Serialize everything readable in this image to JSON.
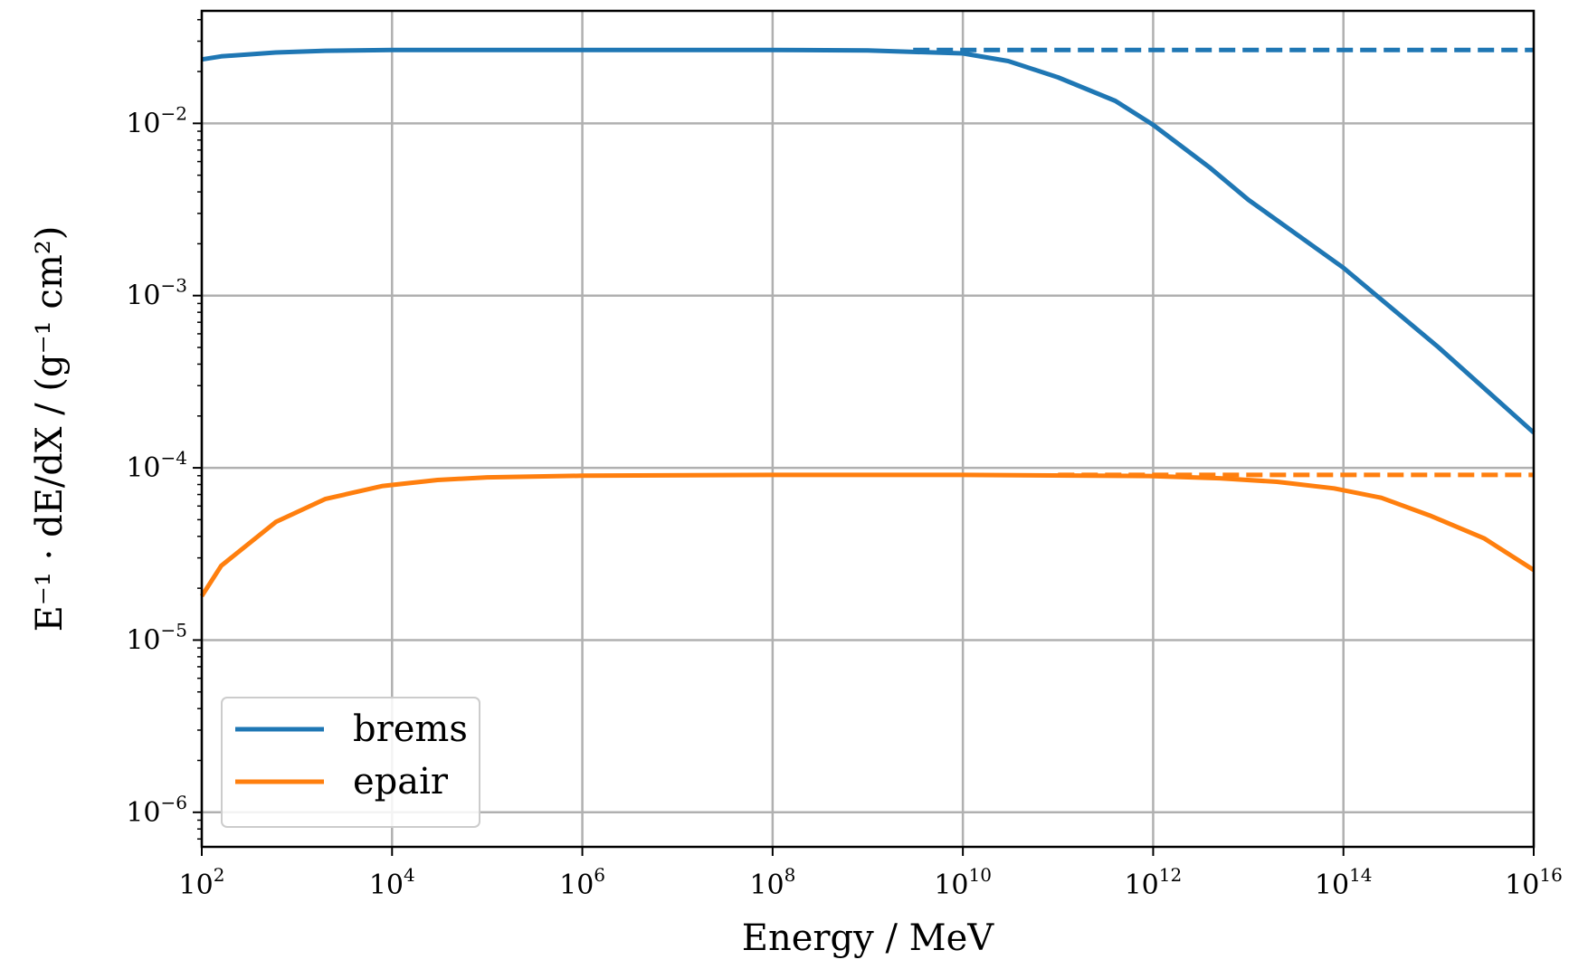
{
  "chart_data": {
    "type": "line",
    "xlabel": "Energy / MeV",
    "ylabel": "E⁻¹ · dE/dX / (g⁻¹ cm²)",
    "x_scale": "log",
    "y_scale": "log",
    "xlim": [
      100,
      1e+16
    ],
    "ylim": [
      6.3e-07,
      0.045
    ],
    "grid": true,
    "legend_position": "lower-left",
    "x_ticks": [
      {
        "value": 100.0,
        "base": "10",
        "exp": "2"
      },
      {
        "value": 10000.0,
        "base": "10",
        "exp": "4"
      },
      {
        "value": 1000000.0,
        "base": "10",
        "exp": "6"
      },
      {
        "value": 100000000.0,
        "base": "10",
        "exp": "8"
      },
      {
        "value": 10000000000.0,
        "base": "10",
        "exp": "10"
      },
      {
        "value": 1000000000000.0,
        "base": "10",
        "exp": "12"
      },
      {
        "value": 100000000000000.0,
        "base": "10",
        "exp": "14"
      },
      {
        "value": 1e+16,
        "base": "10",
        "exp": "16"
      }
    ],
    "y_ticks": [
      {
        "value": 1e-06,
        "base": "10",
        "exp": "−6"
      },
      {
        "value": 1e-05,
        "base": "10",
        "exp": "−5"
      },
      {
        "value": 0.0001,
        "base": "10",
        "exp": "−4"
      },
      {
        "value": 0.001,
        "base": "10",
        "exp": "−3"
      },
      {
        "value": 0.01,
        "base": "10",
        "exp": "−2"
      }
    ],
    "series": [
      {
        "name": "brems",
        "color": "#1f77b4",
        "style": "solid",
        "x": [
          100.0,
          160.0,
          600.0,
          2000.0,
          10000.0,
          1000000.0,
          100000000.0,
          1000000000.0,
          10000000000.0,
          30000000000.0,
          100000000000.0,
          400000000000.0,
          1000000000000.0,
          4000000000000.0,
          10000000000000.0,
          100000000000000.0,
          1000000000000000.0,
          1e+16
        ],
        "y": [
          0.0235,
          0.0245,
          0.0258,
          0.0264,
          0.0267,
          0.0267,
          0.0267,
          0.0265,
          0.0255,
          0.023,
          0.0185,
          0.0135,
          0.0098,
          0.0055,
          0.0036,
          0.00145,
          0.0005,
          0.00016
        ]
      },
      {
        "name": "",
        "color": "#1f77b4",
        "style": "dashed",
        "x": [
          3000000000.0,
          1e+16
        ],
        "y": [
          0.0267,
          0.0267
        ]
      },
      {
        "name": "epair",
        "color": "#ff7f0e",
        "style": "solid",
        "x": [
          100.0,
          160.0,
          600.0,
          2000.0,
          8000.0,
          30000.0,
          100000.0,
          1000000.0,
          100000000.0,
          10000000000.0,
          1000000000000.0,
          5000000000000.0,
          20000000000000.0,
          80000000000000.0,
          250000000000000.0,
          800000000000000.0,
          3000000000000000.0,
          1e+16
        ],
        "y": [
          1.8e-05,
          2.7e-05,
          4.85e-05,
          6.6e-05,
          7.85e-05,
          8.5e-05,
          8.8e-05,
          9e-05,
          9.1e-05,
          9.1e-05,
          8.95e-05,
          8.7e-05,
          8.3e-05,
          7.6e-05,
          6.7e-05,
          5.3e-05,
          3.9e-05,
          2.55e-05
        ]
      },
      {
        "name": "",
        "color": "#ff7f0e",
        "style": "dashed",
        "x": [
          100000000000.0,
          1e+16
        ],
        "y": [
          9.1e-05,
          9.1e-05
        ]
      }
    ],
    "legend": [
      {
        "label": "brems",
        "color": "#1f77b4"
      },
      {
        "label": "epair",
        "color": "#ff7f0e"
      }
    ]
  }
}
